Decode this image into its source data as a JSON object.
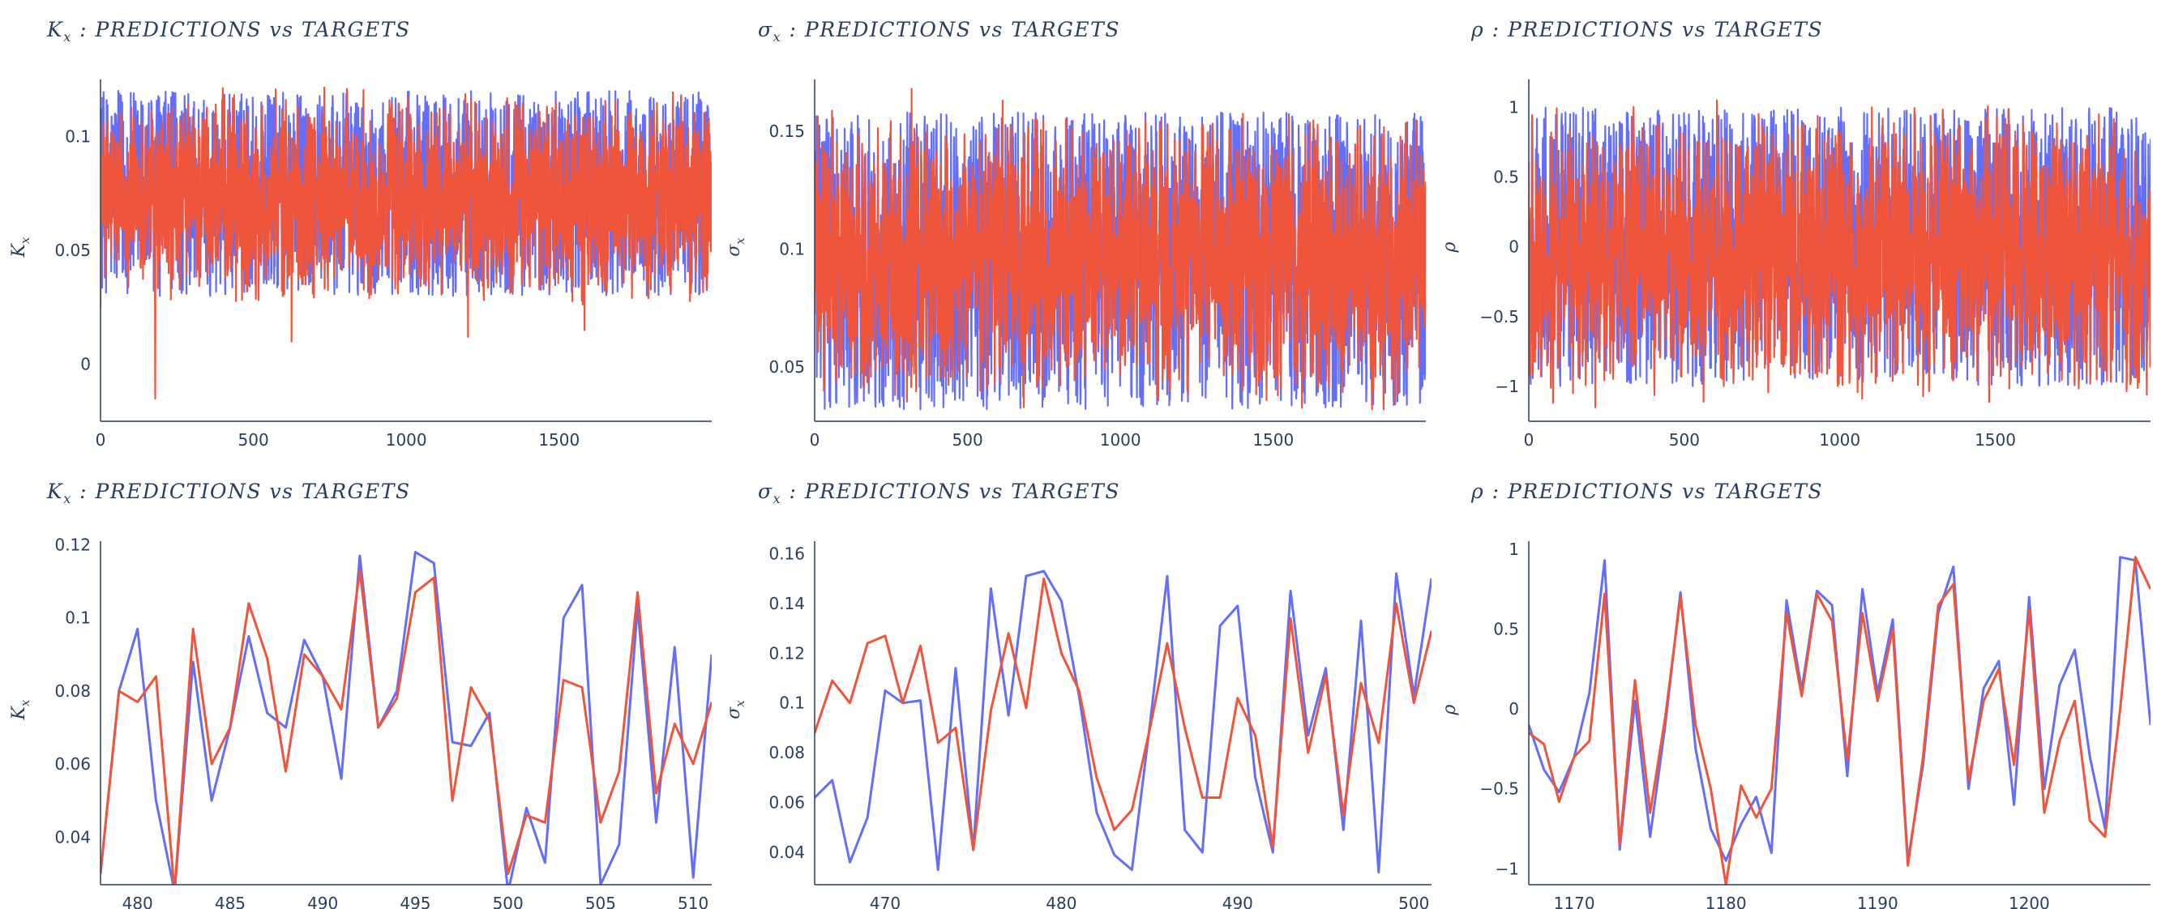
{
  "palette": {
    "targets": "#636efa",
    "predictions": "#ef553b",
    "axis": "#2a3f5f"
  },
  "panels": [
    {
      "id": "kx-full",
      "title": {
        "symbol": "K",
        "sub": "x",
        "rest": " : PREDICTIONS vs TARGETS"
      },
      "ylabel_symbol": "K",
      "ylabel_sub": "x",
      "xlim": [
        0,
        1999
      ],
      "ylim": [
        -0.025,
        0.125
      ],
      "xticks": [
        0,
        500,
        1000,
        1500
      ],
      "xtick_labels": [
        "0",
        "500",
        "1000",
        "1500"
      ],
      "yticks": [
        0,
        0.05,
        0.1
      ],
      "ytick_labels": [
        "0",
        "0.05",
        "0.1"
      ],
      "xlabel_position": "bottom"
    },
    {
      "id": "sigma-full",
      "title": {
        "symbol": "σ",
        "sub": "x",
        "rest": " : PREDICTIONS vs TARGETS"
      },
      "ylabel_symbol": "σ",
      "ylabel_sub": "x",
      "xlim": [
        0,
        1999
      ],
      "ylim": [
        0.027,
        0.172
      ],
      "xticks": [
        0,
        500,
        1000,
        1500
      ],
      "xtick_labels": [
        "0",
        "500",
        "1000",
        "1500"
      ],
      "yticks": [
        0.05,
        0.1,
        0.15
      ],
      "ytick_labels": [
        "0.05",
        "0.1",
        "0.15"
      ]
    },
    {
      "id": "rho-full",
      "title": {
        "symbol": "ρ",
        "sub": "",
        "rest": " : PREDICTIONS vs TARGETS"
      },
      "ylabel_symbol": "ρ",
      "ylabel_sub": "",
      "xlim": [
        0,
        1999
      ],
      "ylim": [
        -1.25,
        1.2
      ],
      "xticks": [
        0,
        500,
        1000,
        1500
      ],
      "xtick_labels": [
        "0",
        "500",
        "1000",
        "1500"
      ],
      "yticks": [
        -1,
        -0.5,
        0,
        0.5,
        1
      ],
      "ytick_labels": [
        "−1",
        "−0.5",
        "0",
        "0.5",
        "1"
      ]
    },
    {
      "id": "kx-zoom",
      "title": {
        "symbol": "K",
        "sub": "x",
        "rest": " : PREDICTIONS vs TARGETS"
      },
      "ylabel_symbol": "K",
      "ylabel_sub": "x",
      "xlim": [
        478,
        511
      ],
      "ylim": [
        0.027,
        0.121
      ],
      "xticks": [
        480,
        485,
        490,
        495,
        500,
        505,
        510
      ],
      "xtick_labels": [
        "480",
        "485",
        "490",
        "495",
        "500",
        "505",
        "510"
      ],
      "yticks": [
        0.04,
        0.06,
        0.08,
        0.1,
        0.12
      ],
      "ytick_labels": [
        "0.04",
        "0.06",
        "0.08",
        "0.1",
        "0.12"
      ]
    },
    {
      "id": "sigma-zoom",
      "title": {
        "symbol": "σ",
        "sub": "x",
        "rest": " : PREDICTIONS vs TARGETS"
      },
      "ylabel_symbol": "σ",
      "ylabel_sub": "x",
      "xlim": [
        466,
        501
      ],
      "ylim": [
        0.027,
        0.165
      ],
      "xticks": [
        470,
        480,
        490,
        500
      ],
      "xtick_labels": [
        "470",
        "480",
        "490",
        "500"
      ],
      "yticks": [
        0.04,
        0.06,
        0.08,
        0.1,
        0.12,
        0.14,
        0.16
      ],
      "ytick_labels": [
        "0.04",
        "0.06",
        "0.08",
        "0.1",
        "0.12",
        "0.14",
        "0.16"
      ]
    },
    {
      "id": "rho-zoom",
      "title": {
        "symbol": "ρ",
        "sub": "",
        "rest": " : PREDICTIONS vs TARGETS"
      },
      "ylabel_symbol": "ρ",
      "ylabel_sub": "",
      "xlim": [
        1167,
        1208
      ],
      "ylim": [
        -1.1,
        1.05
      ],
      "xticks": [
        1170,
        1180,
        1190,
        1200
      ],
      "xtick_labels": [
        "1170",
        "1180",
        "1190",
        "1200"
      ],
      "yticks": [
        -1,
        -0.5,
        0,
        0.5,
        1
      ],
      "ytick_labels": [
        "−1",
        "−0.5",
        "0",
        "0.5",
        "1"
      ]
    }
  ],
  "chart_data": [
    {
      "type": "line",
      "panel": "kx-full",
      "title": "K_x : PREDICTIONS vs TARGETS",
      "ylabel": "K_x",
      "x_range": [
        0,
        1999
      ],
      "ylim": [
        -0.025,
        0.125
      ],
      "series_generation": {
        "targets": {
          "low": 0.03,
          "high": 0.12
        },
        "predictions": {
          "center": 0.07,
          "spread": 0.025,
          "min_spikes": [
            -0.015,
            0.01,
            0.012,
            0.015
          ]
        }
      }
    },
    {
      "type": "line",
      "panel": "sigma-full",
      "title": "σ_x : PREDICTIONS vs TARGETS",
      "ylabel": "σ_x",
      "x_range": [
        0,
        1999
      ],
      "ylim": [
        0.027,
        0.172
      ],
      "series_generation": {
        "targets": {
          "low": 0.032,
          "high": 0.158
        },
        "predictions": {
          "center": 0.095,
          "spread": 0.03,
          "max_spikes": [
            0.168,
            0.163
          ]
        }
      }
    },
    {
      "type": "line",
      "panel": "rho-full",
      "title": "ρ : PREDICTIONS vs TARGETS",
      "ylabel": "ρ",
      "x_range": [
        0,
        1999
      ],
      "ylim": [
        -1.25,
        1.2
      ],
      "series_generation": {
        "targets": {
          "low": -1.0,
          "high": 1.0
        },
        "predictions": {
          "center": -0.1,
          "spread": 0.55,
          "max_spikes": [
            1.05,
            1.0
          ],
          "min_spikes": [
            -1.15
          ]
        }
      }
    },
    {
      "type": "line",
      "panel": "kx-zoom",
      "title": "K_x : PREDICTIONS vs TARGETS",
      "ylabel": "K_x",
      "x": [
        478,
        479,
        480,
        481,
        482,
        483,
        484,
        485,
        486,
        487,
        488,
        489,
        490,
        491,
        492,
        493,
        494,
        495,
        496,
        497,
        498,
        499,
        500,
        501,
        502,
        503,
        504,
        505,
        506,
        507,
        508,
        509,
        510,
        511
      ],
      "series": [
        {
          "name": "targets",
          "values": [
            0.03,
            0.08,
            0.097,
            0.05,
            0.025,
            0.088,
            0.05,
            0.07,
            0.095,
            0.074,
            0.07,
            0.094,
            0.084,
            0.056,
            0.117,
            0.07,
            0.08,
            0.118,
            0.115,
            0.066,
            0.065,
            0.074,
            0.025,
            0.048,
            0.033,
            0.1,
            0.109,
            0.027,
            0.038,
            0.103,
            0.044,
            0.092,
            0.029,
            0.09
          ]
        },
        {
          "name": "predictions",
          "values": [
            0.03,
            0.08,
            0.077,
            0.084,
            0.025,
            0.097,
            0.06,
            0.07,
            0.104,
            0.089,
            0.058,
            0.09,
            0.084,
            0.075,
            0.113,
            0.07,
            0.078,
            0.107,
            0.111,
            0.05,
            0.081,
            0.072,
            0.03,
            0.046,
            0.044,
            0.083,
            0.081,
            0.044,
            0.058,
            0.107,
            0.052,
            0.071,
            0.06,
            0.077
          ]
        }
      ]
    },
    {
      "type": "line",
      "panel": "sigma-zoom",
      "title": "σ_x : PREDICTIONS vs TARGETS",
      "ylabel": "σ_x",
      "x": [
        466,
        467,
        468,
        469,
        470,
        471,
        472,
        473,
        474,
        475,
        476,
        477,
        478,
        479,
        480,
        481,
        482,
        483,
        484,
        485,
        486,
        487,
        488,
        489,
        490,
        491,
        492,
        493,
        494,
        495,
        496,
        497,
        498,
        499,
        500,
        501
      ],
      "series": [
        {
          "name": "targets",
          "values": [
            0.062,
            0.069,
            0.036,
            0.054,
            0.105,
            0.1,
            0.101,
            0.033,
            0.114,
            0.041,
            0.146,
            0.095,
            0.151,
            0.153,
            0.141,
            0.103,
            0.056,
            0.039,
            0.033,
            0.09,
            0.151,
            0.049,
            0.04,
            0.131,
            0.139,
            0.07,
            0.04,
            0.145,
            0.087,
            0.114,
            0.049,
            0.133,
            0.032,
            0.152,
            0.103,
            0.15
          ]
        },
        {
          "name": "predictions",
          "values": [
            0.088,
            0.109,
            0.1,
            0.124,
            0.127,
            0.1,
            0.123,
            0.084,
            0.09,
            0.041,
            0.097,
            0.128,
            0.098,
            0.15,
            0.12,
            0.105,
            0.07,
            0.049,
            0.057,
            0.089,
            0.124,
            0.09,
            0.062,
            0.062,
            0.102,
            0.087,
            0.042,
            0.134,
            0.08,
            0.111,
            0.055,
            0.108,
            0.084,
            0.14,
            0.1,
            0.129
          ]
        }
      ]
    },
    {
      "type": "line",
      "panel": "rho-zoom",
      "title": "ρ : PREDICTIONS vs TARGETS",
      "ylabel": "ρ",
      "x": [
        1167,
        1168,
        1169,
        1170,
        1171,
        1172,
        1173,
        1174,
        1175,
        1176,
        1177,
        1178,
        1179,
        1180,
        1181,
        1182,
        1183,
        1184,
        1185,
        1186,
        1187,
        1188,
        1189,
        1190,
        1191,
        1192,
        1193,
        1194,
        1195,
        1196,
        1197,
        1198,
        1199,
        1200,
        1201,
        1202,
        1203,
        1204,
        1205,
        1206,
        1207,
        1208
      ],
      "series": [
        {
          "name": "targets",
          "values": [
            -0.1,
            -0.38,
            -0.52,
            -0.3,
            0.1,
            0.93,
            -0.88,
            0.05,
            -0.8,
            -0.1,
            0.73,
            -0.25,
            -0.75,
            -0.95,
            -0.72,
            -0.55,
            -0.9,
            0.68,
            0.12,
            0.74,
            0.65,
            -0.42,
            0.75,
            0.1,
            0.56,
            -0.95,
            -0.35,
            0.6,
            0.89,
            -0.5,
            0.13,
            0.3,
            -0.6,
            0.7,
            -0.5,
            0.15,
            0.37,
            -0.3,
            -0.75,
            0.95,
            0.93,
            -0.1
          ]
        },
        {
          "name": "predictions",
          "values": [
            -0.15,
            -0.22,
            -0.58,
            -0.3,
            -0.2,
            0.72,
            -0.85,
            0.18,
            -0.65,
            -0.05,
            0.7,
            -0.1,
            -0.5,
            -1.1,
            -0.48,
            -0.68,
            -0.5,
            0.6,
            0.08,
            0.72,
            0.55,
            -0.32,
            0.6,
            0.05,
            0.5,
            -0.98,
            -0.3,
            0.65,
            0.78,
            -0.45,
            0.05,
            0.25,
            -0.35,
            0.62,
            -0.65,
            -0.2,
            0.05,
            -0.7,
            -0.8,
            0.0,
            0.95,
            0.75
          ]
        }
      ]
    }
  ]
}
